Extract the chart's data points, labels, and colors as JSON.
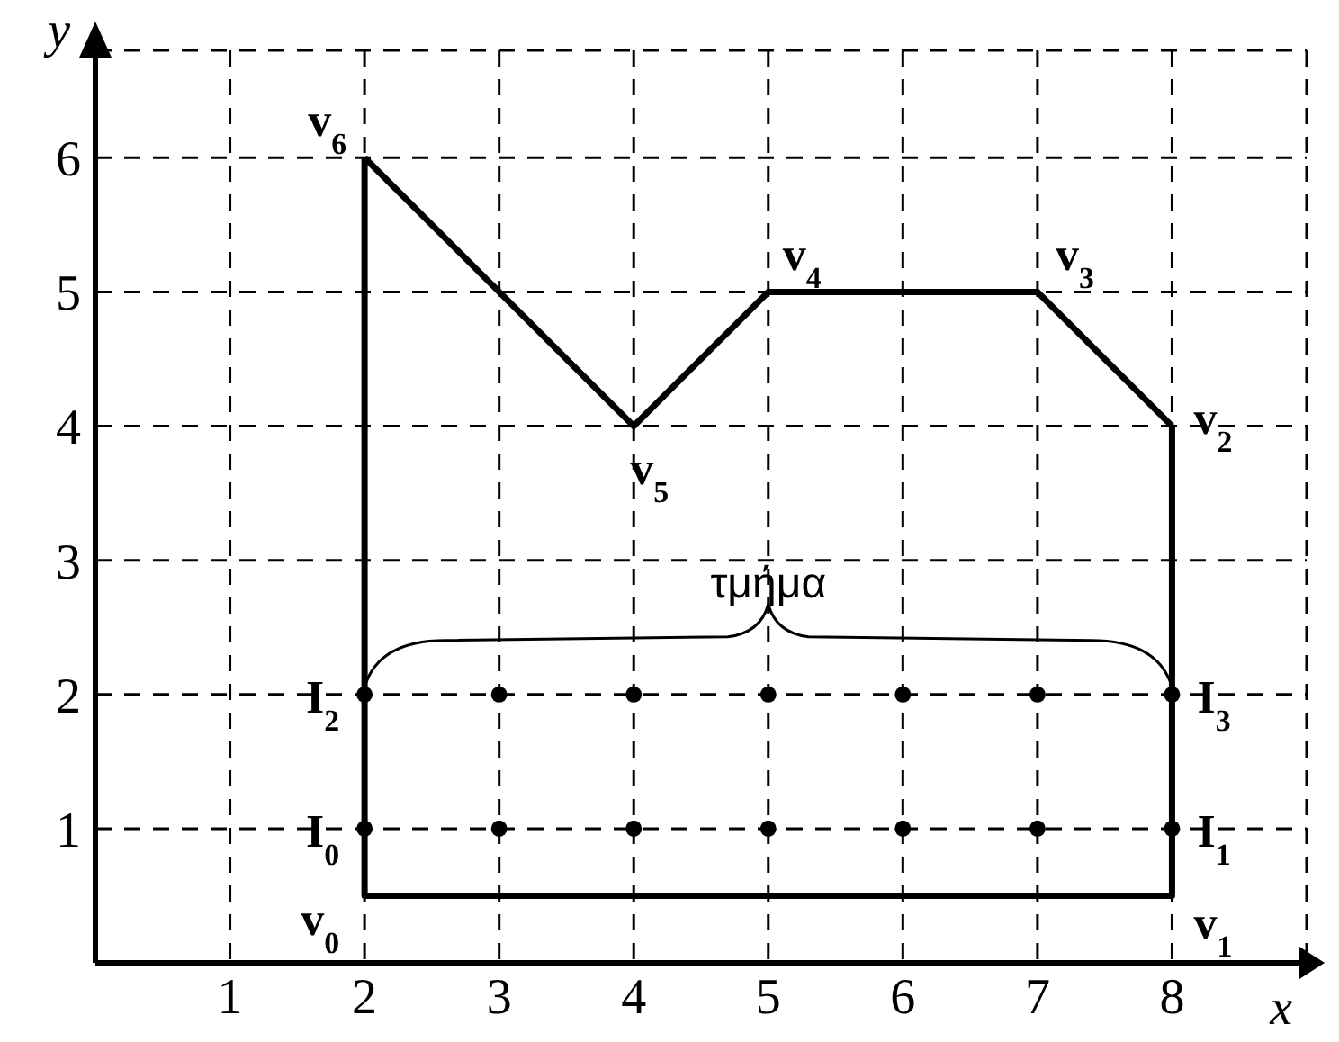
{
  "chart_data": {
    "type": "line",
    "xlabel": "x",
    "ylabel": "y",
    "xlim": [
      0,
      9
    ],
    "ylim": [
      0,
      6.8
    ],
    "xticks": [
      1,
      2,
      3,
      4,
      5,
      6,
      7,
      8
    ],
    "yticks": [
      1,
      2,
      3,
      4,
      5,
      6
    ],
    "grid": true,
    "series": [
      {
        "color": "#000000",
        "marker": "none",
        "line_style": "solid",
        "x": [
          2,
          2,
          8,
          8
        ],
        "values": [
          6,
          0.5,
          0.5,
          4
        ]
      },
      {
        "color": "#000000",
        "marker": "none",
        "line_style": "solid",
        "x": [
          2,
          4,
          5,
          7,
          8
        ],
        "values": [
          6,
          4,
          5,
          5,
          4
        ]
      },
      {
        "type": "scatter",
        "color": "#000000",
        "marker": "circle",
        "x": [
          2,
          3,
          4,
          5,
          6,
          7,
          8,
          2,
          3,
          4,
          5,
          6,
          7,
          8
        ],
        "values": [
          1,
          1,
          1,
          1,
          1,
          1,
          1,
          2,
          2,
          2,
          2,
          2,
          2,
          2
        ]
      }
    ],
    "annotations": [
      {
        "text": "v$_{0}$",
        "x": 2,
        "y": 0.5
      },
      {
        "text": "v$_{1}$",
        "x": 8,
        "y": 0.5
      },
      {
        "text": "v$_{2}$",
        "x": 8,
        "y": 4
      },
      {
        "text": "v$_{3}$",
        "x": 7,
        "y": 5
      },
      {
        "text": "v$_{4}$",
        "x": 5,
        "y": 5
      },
      {
        "text": "v$_{5}$",
        "x": 4,
        "y": 4
      },
      {
        "text": "v$_{6}$",
        "x": 2,
        "y": 6
      },
      {
        "text": "I$_{0}$",
        "x": 2,
        "y": 1
      },
      {
        "text": "I$_{1}$",
        "x": 8,
        "y": 1
      },
      {
        "text": "I$_{2}$",
        "x": 2,
        "y": 2
      },
      {
        "text": "I$_{3}$",
        "x": 8,
        "y": 2
      },
      "τμήμα"
    ]
  }
}
